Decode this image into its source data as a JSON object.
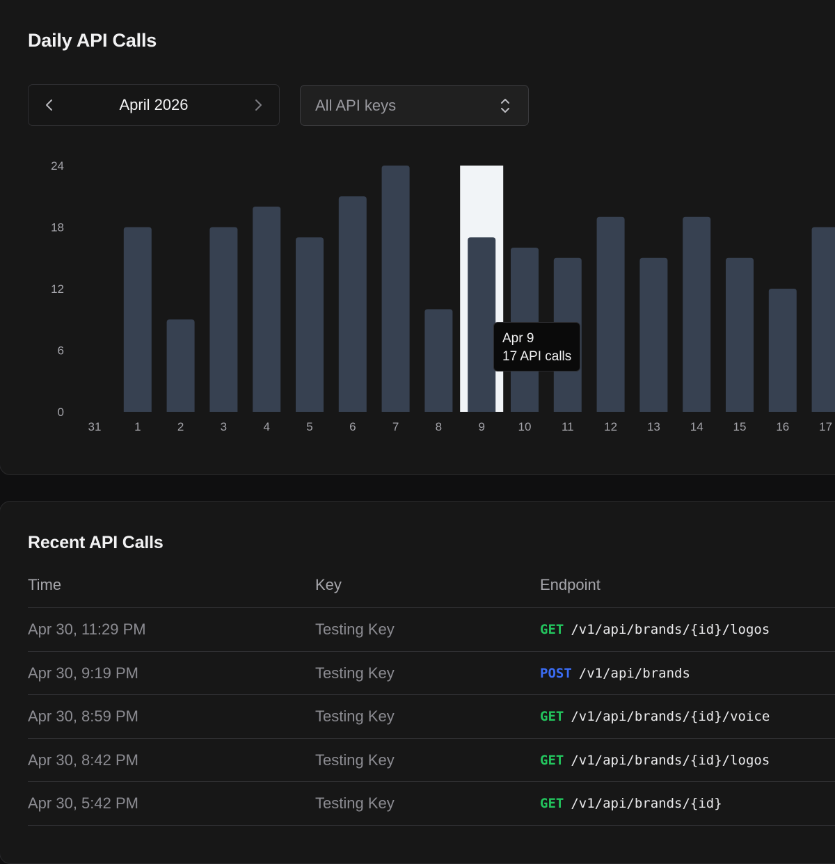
{
  "daily": {
    "title": "Daily API Calls",
    "month": "April 2026",
    "key_filter": "All API keys"
  },
  "chart_data": {
    "type": "bar",
    "title": "",
    "xlabel": "",
    "ylabel": "",
    "ylim": [
      0,
      24
    ],
    "yticks": [
      "0",
      "6",
      "12",
      "18",
      "24"
    ],
    "categories": [
      "31",
      "1",
      "2",
      "3",
      "4",
      "5",
      "6",
      "7",
      "8",
      "9",
      "10",
      "11",
      "12",
      "13",
      "14",
      "15",
      "16",
      "17"
    ],
    "values": [
      0,
      18,
      9,
      18,
      20,
      17,
      21,
      24,
      10,
      17,
      16,
      15,
      19,
      15,
      19,
      15,
      12,
      18
    ],
    "highlighted_category": "9",
    "bar_color": "#374151",
    "highlight_color": "#f1f4f7",
    "tooltip": {
      "date": "Apr 9",
      "value_text": "17 API calls"
    }
  },
  "recent": {
    "title": "Recent API Calls",
    "columns": [
      "Time",
      "Key",
      "Endpoint"
    ],
    "rows": [
      {
        "time": "Apr 30, 11:29 PM",
        "key": "Testing Key",
        "method": "GET",
        "path": "/v1/api/brands/{id}/logos"
      },
      {
        "time": "Apr 30, 9:19 PM",
        "key": "Testing Key",
        "method": "POST",
        "path": "/v1/api/brands"
      },
      {
        "time": "Apr 30, 8:59 PM",
        "key": "Testing Key",
        "method": "GET",
        "path": "/v1/api/brands/{id}/voice"
      },
      {
        "time": "Apr 30, 8:42 PM",
        "key": "Testing Key",
        "method": "GET",
        "path": "/v1/api/brands/{id}/logos"
      },
      {
        "time": "Apr 30, 5:42 PM",
        "key": "Testing Key",
        "method": "GET",
        "path": "/v1/api/brands/{id}"
      }
    ],
    "method_colors": {
      "GET": "#23c55e",
      "POST": "#3b6df5"
    }
  },
  "icons": {
    "prev": "chevron-left-icon",
    "next": "chevron-right-icon",
    "select": "chevron-up-down-icon"
  }
}
